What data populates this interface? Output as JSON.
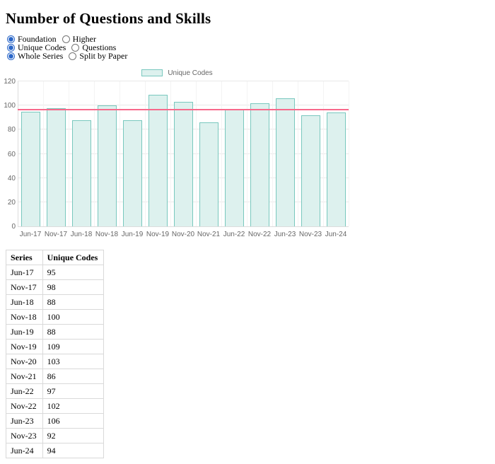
{
  "title": "Number of Questions and Skills",
  "controls": {
    "rows": [
      {
        "group": "tier",
        "options": [
          {
            "label": "Foundation",
            "checked": "checked"
          },
          {
            "label": "Higher"
          }
        ]
      },
      {
        "group": "measure",
        "options": [
          {
            "label": "Unique Codes",
            "checked": "checked"
          },
          {
            "label": "Questions"
          }
        ]
      },
      {
        "group": "series",
        "options": [
          {
            "label": "Whole Series",
            "checked": "checked"
          },
          {
            "label": "Split by Paper"
          }
        ]
      }
    ]
  },
  "chart_data": {
    "type": "bar",
    "title": "",
    "legend_position": "top",
    "categories": [
      "Jun-17",
      "Nov-17",
      "Jun-18",
      "Nov-18",
      "Jun-19",
      "Nov-19",
      "Nov-20",
      "Nov-21",
      "Jun-22",
      "Nov-22",
      "Jun-23",
      "Nov-23",
      "Jun-24"
    ],
    "series": [
      {
        "name": "Unique Codes",
        "values": [
          95,
          98,
          88,
          100,
          88,
          109,
          103,
          86,
          97,
          102,
          106,
          92,
          94
        ]
      }
    ],
    "average_line": 96.8,
    "ylim": [
      0,
      120
    ],
    "ytick_step": 20,
    "grid": true,
    "colors": {
      "bar_fill": "#ddf1ee",
      "bar_border": "#79c8be",
      "average_line": "#f8698b",
      "hgrid": "#e9e9e9",
      "vgrid": "#f3f3f3",
      "axis_line": "#dcdcdc",
      "tick_text": "#666666"
    }
  },
  "table": {
    "headers": [
      "Series",
      "Unique Codes"
    ],
    "rows": [
      [
        "Jun-17",
        "95"
      ],
      [
        "Nov-17",
        "98"
      ],
      [
        "Jun-18",
        "88"
      ],
      [
        "Nov-18",
        "100"
      ],
      [
        "Jun-19",
        "88"
      ],
      [
        "Nov-19",
        "109"
      ],
      [
        "Nov-20",
        "103"
      ],
      [
        "Nov-21",
        "86"
      ],
      [
        "Jun-22",
        "97"
      ],
      [
        "Nov-22",
        "102"
      ],
      [
        "Jun-23",
        "106"
      ],
      [
        "Nov-23",
        "92"
      ],
      [
        "Jun-24",
        "94"
      ]
    ]
  }
}
